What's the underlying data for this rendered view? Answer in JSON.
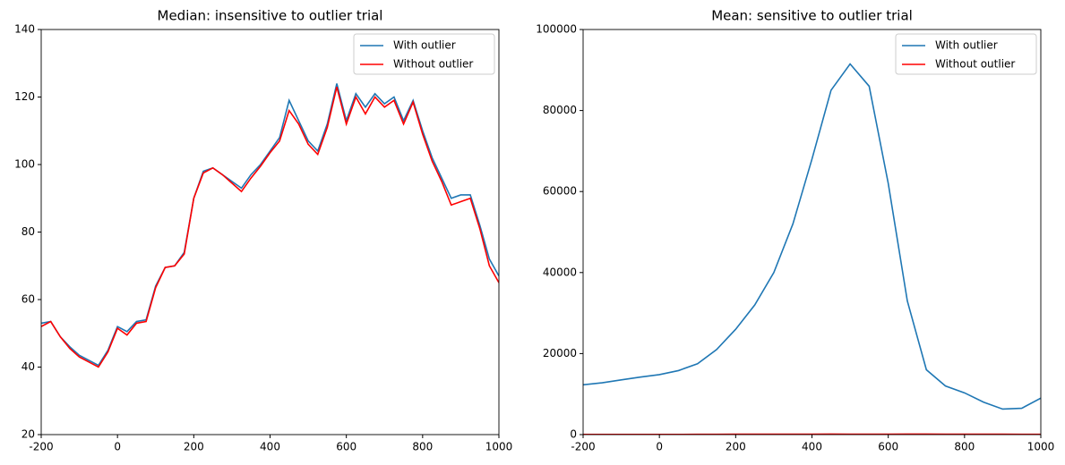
{
  "chart_data": [
    {
      "type": "line",
      "title": "Median: insensitive to outlier trial",
      "x": [
        -200,
        -175,
        -150,
        -125,
        -100,
        -75,
        -50,
        -25,
        0,
        25,
        50,
        75,
        100,
        125,
        150,
        175,
        200,
        225,
        250,
        275,
        300,
        325,
        350,
        375,
        400,
        425,
        450,
        475,
        500,
        525,
        550,
        575,
        600,
        625,
        650,
        675,
        700,
        725,
        750,
        775,
        800,
        825,
        850,
        875,
        900,
        925,
        950,
        975,
        1000
      ],
      "series": [
        {
          "name": "With outlier",
          "color": "#1f77b4",
          "values": [
            53,
            53.5,
            49,
            46,
            43.5,
            42,
            40.5,
            45,
            52,
            50.5,
            53.5,
            54,
            64,
            69.5,
            70,
            74,
            90,
            98,
            99,
            97,
            95,
            93,
            97,
            100,
            104,
            108,
            119,
            113,
            107,
            104,
            112,
            124,
            113,
            121,
            117,
            121,
            118,
            120,
            113,
            119,
            110,
            102,
            96,
            90,
            91,
            91,
            82,
            72,
            67
          ]
        },
        {
          "name": "Without outlier",
          "color": "#ff0000",
          "values": [
            52,
            53.5,
            49,
            45.5,
            43,
            41.5,
            40,
            44.5,
            51.5,
            49.5,
            53,
            53.5,
            63.5,
            69.5,
            70,
            73.5,
            90,
            97.5,
            99,
            97,
            94.5,
            92,
            96,
            99.5,
            103.5,
            107,
            116,
            112,
            106,
            103,
            111,
            123,
            112,
            120,
            115,
            120,
            117,
            119,
            112,
            118.5,
            109,
            101,
            95,
            88,
            89,
            90,
            81,
            70,
            65
          ]
        }
      ],
      "xlim": [
        -200,
        1000
      ],
      "xticks": [
        -200,
        0,
        200,
        400,
        600,
        800,
        1000
      ],
      "ylim": [
        20,
        140
      ],
      "yticks": [
        20,
        40,
        60,
        80,
        100,
        120,
        140
      ],
      "legend": "upper right"
    },
    {
      "type": "line",
      "title": "Mean: sensitive to outlier trial",
      "x": [
        -200,
        -150,
        -100,
        -50,
        0,
        50,
        100,
        150,
        200,
        250,
        300,
        350,
        400,
        450,
        500,
        550,
        600,
        650,
        700,
        750,
        800,
        850,
        900,
        950,
        1000
      ],
      "series": [
        {
          "name": "With outlier",
          "color": "#1f77b4",
          "values": [
            12300,
            12800,
            13500,
            14200,
            14800,
            15800,
            17500,
            21000,
            26000,
            32000,
            40000,
            52000,
            68000,
            85000,
            91500,
            86000,
            62000,
            33000,
            16000,
            12000,
            10300,
            8000,
            6300,
            6500,
            9000
          ]
        },
        {
          "name": "Without outlier",
          "color": "#ff0000",
          "values": [
            52,
            49,
            43,
            40,
            51.5,
            53,
            63.5,
            70,
            90,
            99,
            94.5,
            96,
            103.5,
            116,
            106,
            111,
            112,
            115,
            117,
            112,
            109,
            95,
            89,
            81,
            65
          ]
        }
      ],
      "xlim": [
        -200,
        1000
      ],
      "xticks": [
        -200,
        0,
        200,
        400,
        600,
        800,
        1000
      ],
      "ylim": [
        0,
        100000
      ],
      "yticks": [
        0,
        20000,
        40000,
        60000,
        80000,
        100000
      ],
      "legend": "upper right"
    }
  ]
}
